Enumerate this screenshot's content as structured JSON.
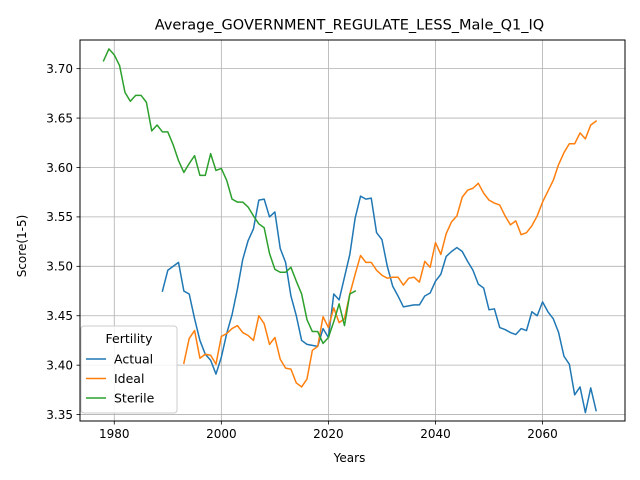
{
  "chart_data": {
    "type": "line",
    "title": "Average_GOVERNMENT_REGULATE_LESS_Male_Q1_IQ",
    "xlabel": "Years",
    "ylabel": "Score(1-5)",
    "xlim": [
      1973.6,
      2075.4
    ],
    "ylim": [
      3.3435,
      3.729
    ],
    "xticks": [
      1980,
      2000,
      2020,
      2040,
      2060
    ],
    "yticks": [
      3.35,
      3.4,
      3.45,
      3.5,
      3.55,
      3.6,
      3.65,
      3.7
    ],
    "ytick_labels": [
      "3.35",
      "3.40",
      "3.45",
      "3.50",
      "3.55",
      "3.60",
      "3.65",
      "3.70"
    ],
    "grid": true,
    "legend": {
      "title": "Fertility",
      "placement": "lower-left"
    },
    "series": [
      {
        "name": "Actual",
        "color": "#1f77b4",
        "x": [
          1989,
          1990,
          1992,
          1993,
          1994,
          1995,
          1996,
          1997,
          1998,
          1999,
          2000,
          2001,
          2002,
          2003,
          2004,
          2005,
          2006,
          2007,
          2008,
          2009,
          2010,
          2011,
          2012,
          2013,
          2014,
          2015,
          2016,
          2017,
          2018,
          2019,
          2020,
          2021,
          2022,
          2023,
          2024,
          2025,
          2026,
          2027,
          2028,
          2029,
          2030,
          2031,
          2032,
          2033,
          2034,
          2035,
          2036,
          2037,
          2038,
          2039,
          2040,
          2041,
          2042,
          2043,
          2044,
          2045,
          2046,
          2047,
          2048,
          2049,
          2050,
          2051,
          2052,
          2053,
          2054,
          2055,
          2056,
          2057,
          2058,
          2059,
          2060,
          2061,
          2062,
          2063,
          2064,
          2065,
          2066,
          2067,
          2068,
          2069,
          2070
        ],
        "y": [
          3.475,
          3.496,
          3.504,
          3.475,
          3.472,
          3.447,
          3.425,
          3.411,
          3.405,
          3.391,
          3.408,
          3.432,
          3.451,
          3.477,
          3.507,
          3.526,
          3.538,
          3.567,
          3.568,
          3.55,
          3.555,
          3.518,
          3.504,
          3.47,
          3.45,
          3.425,
          3.421,
          3.42,
          3.419,
          3.437,
          3.428,
          3.472,
          3.466,
          3.489,
          3.512,
          3.549,
          3.571,
          3.568,
          3.569,
          3.534,
          3.527,
          3.5,
          3.48,
          3.47,
          3.459,
          3.46,
          3.461,
          3.461,
          3.47,
          3.473,
          3.485,
          3.492,
          3.51,
          3.515,
          3.519,
          3.515,
          3.505,
          3.496,
          3.482,
          3.478,
          3.456,
          3.457,
          3.438,
          3.436,
          3.433,
          3.431,
          3.437,
          3.435,
          3.454,
          3.45,
          3.464,
          3.454,
          3.447,
          3.433,
          3.409,
          3.401,
          3.37,
          3.378,
          3.352,
          3.377,
          3.354
        ]
      },
      {
        "name": "Ideal",
        "color": "#ff7f0e",
        "x": [
          1993,
          1994,
          1995,
          1996,
          1997,
          1998,
          1999,
          2000,
          2001,
          2002,
          2003,
          2004,
          2005,
          2006,
          2007,
          2008,
          2009,
          2010,
          2011,
          2012,
          2013,
          2014,
          2015,
          2016,
          2017,
          2018,
          2019,
          2020,
          2021,
          2022,
          2023,
          2024,
          2025,
          2026,
          2027,
          2028,
          2029,
          2030,
          2031,
          2032,
          2033,
          2034,
          2035,
          2036,
          2037,
          2038,
          2039,
          2040,
          2041,
          2042,
          2043,
          2044,
          2045,
          2046,
          2047,
          2048,
          2049,
          2050,
          2051,
          2052,
          2053,
          2054,
          2055,
          2056,
          2057,
          2058,
          2059,
          2060,
          2061,
          2062,
          2063,
          2064,
          2065,
          2066,
          2067,
          2068,
          2069,
          2070
        ],
        "y": [
          3.402,
          3.427,
          3.435,
          3.407,
          3.411,
          3.41,
          3.401,
          3.429,
          3.432,
          3.437,
          3.44,
          3.433,
          3.43,
          3.425,
          3.45,
          3.442,
          3.421,
          3.428,
          3.406,
          3.397,
          3.396,
          3.382,
          3.378,
          3.386,
          3.415,
          3.419,
          3.449,
          3.438,
          3.458,
          3.443,
          3.447,
          3.472,
          3.492,
          3.511,
          3.504,
          3.504,
          3.496,
          3.491,
          3.488,
          3.489,
          3.489,
          3.481,
          3.488,
          3.489,
          3.484,
          3.505,
          3.499,
          3.524,
          3.512,
          3.533,
          3.545,
          3.551,
          3.57,
          3.577,
          3.579,
          3.584,
          3.574,
          3.567,
          3.564,
          3.562,
          3.551,
          3.542,
          3.546,
          3.532,
          3.534,
          3.541,
          3.551,
          3.565,
          3.576,
          3.587,
          3.603,
          3.615,
          3.624,
          3.624,
          3.635,
          3.629,
          3.643,
          3.647
        ]
      },
      {
        "name": "Sterile",
        "color": "#2ca02c",
        "x": [
          1978,
          1979,
          1980,
          1981,
          1982,
          1983,
          1984,
          1985,
          1986,
          1987,
          1988,
          1989,
          1990,
          1991,
          1992,
          1993,
          1994,
          1995,
          1996,
          1997,
          1998,
          1999,
          2000,
          2001,
          2002,
          2003,
          2004,
          2005,
          2006,
          2007,
          2008,
          2009,
          2010,
          2011,
          2012,
          2013,
          2014,
          2015,
          2016,
          2017,
          2018,
          2019,
          2020,
          2021,
          2022,
          2023,
          2024,
          2025
        ],
        "y": [
          3.708,
          3.72,
          3.714,
          3.703,
          3.676,
          3.667,
          3.673,
          3.673,
          3.666,
          3.637,
          3.643,
          3.636,
          3.636,
          3.623,
          3.607,
          3.595,
          3.604,
          3.612,
          3.592,
          3.592,
          3.614,
          3.597,
          3.599,
          3.587,
          3.568,
          3.565,
          3.565,
          3.56,
          3.551,
          3.543,
          3.539,
          3.513,
          3.497,
          3.494,
          3.494,
          3.499,
          3.485,
          3.472,
          3.446,
          3.434,
          3.434,
          3.422,
          3.428,
          3.444,
          3.462,
          3.44,
          3.472,
          3.475
        ]
      }
    ]
  }
}
